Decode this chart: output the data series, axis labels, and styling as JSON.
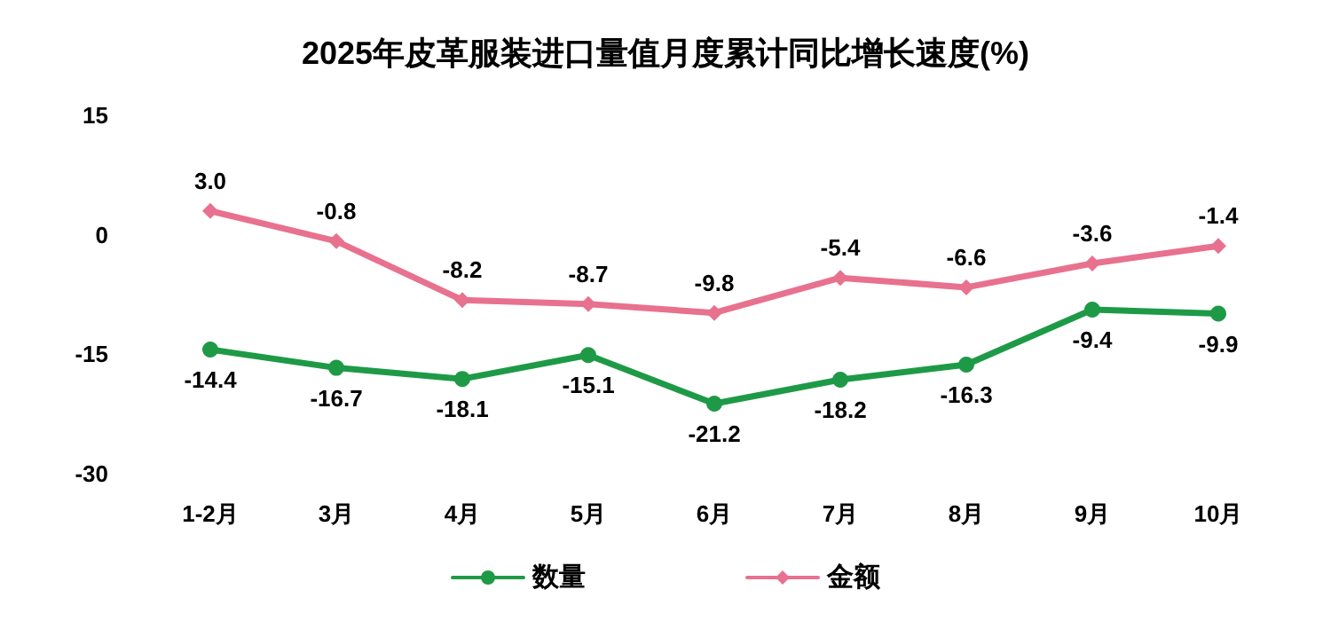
{
  "chart_data": {
    "type": "line",
    "title": "2025年皮革服装进口量值月度累计同比增长速度(%)",
    "categories": [
      "1-2月",
      "3月",
      "4月",
      "5月",
      "6月",
      "7月",
      "8月",
      "9月",
      "10月"
    ],
    "series": [
      {
        "name": "数量",
        "color": "#1e9a47",
        "marker": "circle",
        "values": [
          -14.4,
          -16.7,
          -18.1,
          -15.1,
          -21.2,
          -18.2,
          -16.3,
          -9.4,
          -9.9
        ],
        "value_labels": [
          "-14.4",
          "-16.7",
          "-18.1",
          "-15.1",
          "-21.2",
          "-18.2",
          "-16.3",
          "-9.4",
          "-9.9"
        ]
      },
      {
        "name": "金额",
        "color": "#e8718f",
        "marker": "diamond",
        "values": [
          3.0,
          -0.8,
          -8.2,
          -8.7,
          -9.8,
          -5.4,
          -6.6,
          -3.6,
          -1.4
        ],
        "value_labels": [
          "3.0",
          "-0.8",
          "-8.2",
          "-8.7",
          "-9.8",
          "-5.4",
          "-6.6",
          "-3.6",
          "-1.4"
        ]
      }
    ],
    "ylim": [
      -30,
      15
    ],
    "yticks": [
      -30,
      -15,
      0,
      15
    ],
    "grid": false,
    "legend": "bottom"
  }
}
